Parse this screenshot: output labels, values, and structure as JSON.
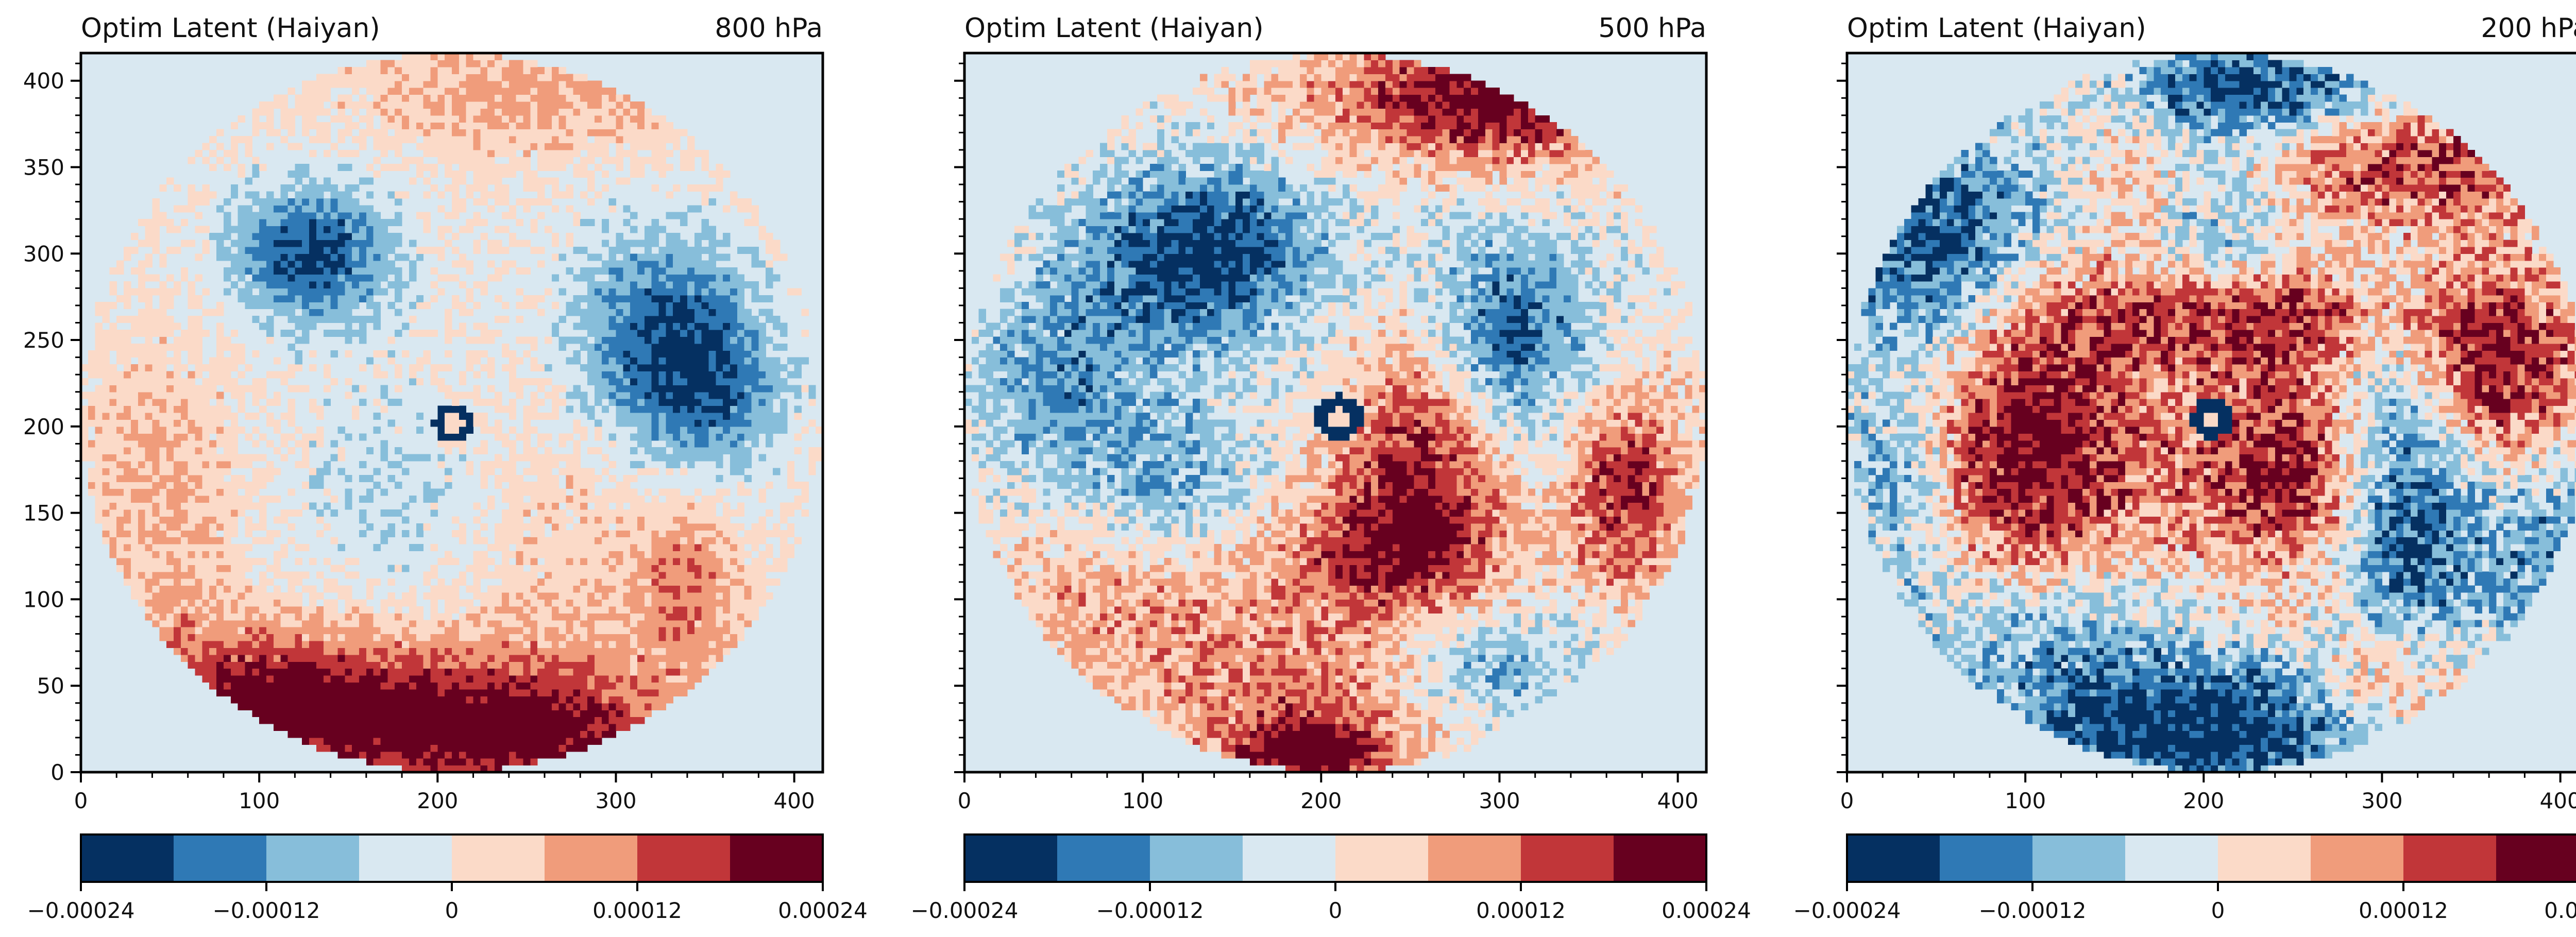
{
  "colors": {
    "colormap": [
      "#053061",
      "#2f79b5",
      "#87beda",
      "#d9e8f1",
      "#fbdac8",
      "#f09c7b",
      "#c13639",
      "#67001f"
    ],
    "background_level_color": "#d9e8f1",
    "axes_color": "#000000",
    "text_color": "#111111"
  },
  "chart_data": [
    {
      "type": "heatmap",
      "title": "Optim Latent (Haiyan)",
      "subtitle": "800 hPa",
      "xlim": [
        0,
        416
      ],
      "ylim": [
        0,
        416
      ],
      "x_ticks": [
        0,
        100,
        200,
        300,
        400
      ],
      "y_ticks": [
        0,
        50,
        100,
        150,
        200,
        250,
        300,
        350,
        400
      ],
      "center": [
        208,
        208
      ],
      "radius": 208,
      "eye": {
        "x": 209,
        "y": 202,
        "r_outer": 11,
        "r_inner": 5
      },
      "blobs": [
        {
          "x": 190,
          "y": 30,
          "sx": 95,
          "sy": 34,
          "a": 0.00019
        },
        {
          "x": 100,
          "y": 45,
          "sx": 55,
          "sy": 28,
          "a": 0.00011
        },
        {
          "x": 265,
          "y": 22,
          "sx": 45,
          "sy": 20,
          "a": 9e-05
        },
        {
          "x": 130,
          "y": 300,
          "sx": 32,
          "sy": 28,
          "a": -0.0002
        },
        {
          "x": 325,
          "y": 250,
          "sx": 35,
          "sy": 45,
          "a": -0.00018
        },
        {
          "x": 360,
          "y": 220,
          "sx": 28,
          "sy": 32,
          "a": -0.0001
        },
        {
          "x": 340,
          "y": 110,
          "sx": 22,
          "sy": 35,
          "a": 0.00011
        },
        {
          "x": 45,
          "y": 150,
          "sx": 35,
          "sy": 70,
          "a": 7e-05
        },
        {
          "x": 255,
          "y": 395,
          "sx": 75,
          "sy": 26,
          "a": 8e-05
        },
        {
          "x": 265,
          "y": 150,
          "sx": 38,
          "sy": 58,
          "a": 5e-05
        },
        {
          "x": 180,
          "y": 160,
          "sx": 55,
          "sy": 55,
          "a": -5e-05
        }
      ],
      "noise": 4e-05,
      "seed": 11
    },
    {
      "type": "heatmap",
      "title": "Optim Latent (Haiyan)",
      "subtitle": "500 hPa",
      "xlim": [
        0,
        416
      ],
      "ylim": [
        0,
        416
      ],
      "x_ticks": [
        0,
        100,
        200,
        300,
        400
      ],
      "y_ticks": [
        0,
        50,
        100,
        150,
        200,
        250,
        300,
        350,
        400
      ],
      "center": [
        208,
        208
      ],
      "radius": 208,
      "eye": {
        "x": 210,
        "y": 205,
        "r_outer": 13,
        "r_inner": 6
      },
      "blobs": [
        {
          "x": 300,
          "y": 390,
          "sx": 70,
          "sy": 24,
          "a": 0.00024
        },
        {
          "x": 135,
          "y": 300,
          "sx": 48,
          "sy": 36,
          "a": -0.00022
        },
        {
          "x": 305,
          "y": 255,
          "sx": 35,
          "sy": 40,
          "a": -0.00018
        },
        {
          "x": 55,
          "y": 225,
          "sx": 38,
          "sy": 42,
          "a": -0.00012
        },
        {
          "x": 120,
          "y": 165,
          "sx": 35,
          "sy": 35,
          "a": -0.0001
        },
        {
          "x": 255,
          "y": 185,
          "sx": 30,
          "sy": 55,
          "a": 0.00017
        },
        {
          "x": 235,
          "y": 125,
          "sx": 50,
          "sy": 30,
          "a": 0.00014
        },
        {
          "x": 370,
          "y": 165,
          "sx": 22,
          "sy": 40,
          "a": 0.00018
        },
        {
          "x": 195,
          "y": 40,
          "sx": 60,
          "sy": 30,
          "a": 0.00012
        },
        {
          "x": 290,
          "y": 60,
          "sx": 42,
          "sy": 26,
          "a": -0.00012
        },
        {
          "x": 90,
          "y": 100,
          "sx": 55,
          "sy": 35,
          "a": 9e-05
        },
        {
          "x": 195,
          "y": 12,
          "sx": 28,
          "sy": 12,
          "a": 0.00022
        }
      ],
      "noise": 6e-05,
      "seed": 23
    },
    {
      "type": "heatmap",
      "title": "Optim Latent (Haiyan)",
      "subtitle": "200 hPa",
      "xlim": [
        0,
        416
      ],
      "ylim": [
        0,
        416
      ],
      "x_ticks": [
        0,
        100,
        200,
        300,
        400
      ],
      "y_ticks": [
        0,
        50,
        100,
        150,
        200,
        250,
        300,
        350,
        400
      ],
      "center": [
        208,
        208
      ],
      "radius": 208,
      "eye": {
        "x": 205,
        "y": 205,
        "r_outer": 12,
        "r_inner": 5
      },
      "blobs": [
        {
          "x": 95,
          "y": 190,
          "sx": 55,
          "sy": 65,
          "a": 0.00024
        },
        {
          "x": 255,
          "y": 175,
          "sx": 42,
          "sy": 45,
          "a": 0.0002
        },
        {
          "x": 230,
          "y": 265,
          "sx": 70,
          "sy": 22,
          "a": 0.00018
        },
        {
          "x": 360,
          "y": 235,
          "sx": 35,
          "sy": 38,
          "a": 0.00022
        },
        {
          "x": 300,
          "y": 350,
          "sx": 70,
          "sy": 32,
          "a": 0.00018
        },
        {
          "x": 160,
          "y": 335,
          "sx": 25,
          "sy": 35,
          "a": 0.00014
        },
        {
          "x": 305,
          "y": 50,
          "sx": 30,
          "sy": 28,
          "a": 0.00018
        },
        {
          "x": 195,
          "y": 25,
          "sx": 85,
          "sy": 30,
          "a": -0.00024
        },
        {
          "x": 310,
          "y": 165,
          "sx": 28,
          "sy": 80,
          "a": -0.00024
        },
        {
          "x": 45,
          "y": 300,
          "sx": 40,
          "sy": 55,
          "a": -0.00022
        },
        {
          "x": 30,
          "y": 170,
          "sx": 28,
          "sy": 40,
          "a": -0.00018
        },
        {
          "x": 190,
          "y": 325,
          "sx": 55,
          "sy": 38,
          "a": -0.00016
        },
        {
          "x": 235,
          "y": 395,
          "sx": 55,
          "sy": 20,
          "a": -0.00022
        },
        {
          "x": 390,
          "y": 130,
          "sx": 30,
          "sy": 40,
          "a": -0.00012
        },
        {
          "x": 100,
          "y": 90,
          "sx": 60,
          "sy": 30,
          "a": -0.00012
        }
      ],
      "noise": 8e-05,
      "seed": 37
    }
  ],
  "colorbar": {
    "boundaries": [
      -0.00024,
      -0.00018,
      -0.00012,
      -6e-05,
      0,
      6e-05,
      0.00012,
      0.00018,
      0.00024
    ],
    "tick_values": [
      -0.00024,
      -0.00012,
      0,
      0.00012,
      0.00024
    ],
    "tick_labels": [
      "−0.00024",
      "−0.00012",
      "0",
      "0.00012",
      "0.00024"
    ]
  }
}
